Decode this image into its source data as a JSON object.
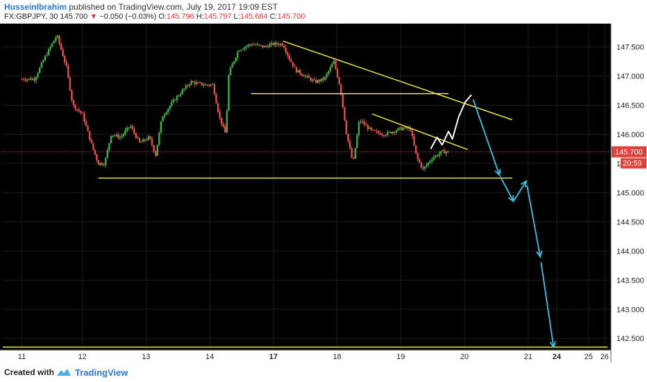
{
  "header": {
    "author": "HusseinIbrahim",
    "published_text": "published on TradingView.com, July 19, 2017 19:09 EST",
    "symbol_line": "FX:GBPJPY, 30",
    "last": "145.700",
    "change": "−0.050 (−0.03%)",
    "o_label": "O:",
    "o_val": "145.796",
    "h_label": "H:",
    "h_val": "145.797",
    "l_label": "L:",
    "l_val": "145.684",
    "c_label": "C:",
    "c_val": "145.700"
  },
  "footer": {
    "created_with": "Created with",
    "brand": "TradingView"
  },
  "chart_data": {
    "type": "candlestick",
    "symbol": "FX:GBPJPY",
    "interval": "30",
    "background": "#000000",
    "grid": true,
    "ylim": [
      142.3,
      147.9
    ],
    "y_ticks": [
      "147.500",
      "147.000",
      "146.500",
      "146.000",
      "145.500",
      "145.000",
      "144.500",
      "144.000",
      "143.500",
      "143.000",
      "142.500"
    ],
    "x_ticks": [
      "11",
      "12",
      "13",
      "14",
      "17",
      "18",
      "19",
      "20",
      "21",
      "24",
      "25",
      "26"
    ],
    "bold_x_ticks": [
      "17",
      "24"
    ],
    "price_badge": "145.700",
    "countdown_badge": "20:59",
    "colors": {
      "up": "#3fb04a",
      "down": "#e84e4e",
      "trendline": "#e8e840",
      "projection": "#3cc6e6",
      "wave": "#ffffff",
      "badge": "#e0403a"
    },
    "price_path": [
      [
        10.9,
        146.95
      ],
      [
        11.1,
        146.95
      ],
      [
        11.25,
        147.3
      ],
      [
        11.45,
        147.7
      ],
      [
        11.6,
        147.15
      ],
      [
        11.7,
        146.5
      ],
      [
        11.85,
        146.35
      ],
      [
        12.0,
        145.8
      ],
      [
        12.1,
        145.5
      ],
      [
        12.2,
        145.5
      ],
      [
        12.3,
        146.0
      ],
      [
        12.45,
        145.95
      ],
      [
        12.6,
        146.15
      ],
      [
        12.75,
        145.85
      ],
      [
        12.9,
        145.95
      ],
      [
        13.0,
        145.65
      ],
      [
        13.1,
        146.3
      ],
      [
        13.3,
        146.6
      ],
      [
        13.55,
        146.9
      ],
      [
        13.75,
        146.85
      ],
      [
        13.9,
        146.85
      ],
      [
        14.0,
        146.3
      ],
      [
        14.1,
        146.0
      ],
      [
        14.15,
        147.05
      ],
      [
        14.3,
        147.45
      ],
      [
        14.5,
        147.55
      ],
      [
        14.7,
        147.5
      ],
      [
        14.85,
        147.55
      ],
      [
        15.0,
        147.55
      ],
      [
        15.1,
        147.3
      ],
      [
        15.2,
        147.1
      ],
      [
        15.35,
        147.0
      ],
      [
        15.5,
        146.9
      ],
      [
        15.65,
        146.95
      ],
      [
        15.8,
        147.25
      ],
      [
        15.9,
        146.8
      ],
      [
        16.0,
        146.0
      ],
      [
        16.1,
        145.5
      ],
      [
        16.2,
        146.25
      ],
      [
        16.4,
        146.05
      ],
      [
        16.6,
        146.0
      ],
      [
        16.85,
        146.1
      ],
      [
        17.0,
        146.1
      ],
      [
        17.1,
        145.6
      ],
      [
        17.2,
        145.4
      ],
      [
        17.35,
        145.6
      ],
      [
        17.5,
        145.7
      ],
      [
        17.6,
        145.7
      ]
    ],
    "trendlines": [
      {
        "x1": 12.1,
        "y1": 145.25,
        "x2": 18.6,
        "y2": 145.25
      },
      {
        "x1": 14.5,
        "y1": 146.7,
        "x2": 17.6,
        "y2": 146.7
      },
      {
        "x1": 15.0,
        "y1": 147.6,
        "x2": 18.6,
        "y2": 146.25
      },
      {
        "x1": 16.4,
        "y1": 146.35,
        "x2": 17.9,
        "y2": 145.74
      },
      {
        "x1": 10.6,
        "y1": 142.35,
        "x2": 20.1,
        "y2": 142.35
      }
    ],
    "wave_path": [
      [
        17.32,
        145.75
      ],
      [
        17.42,
        145.95
      ],
      [
        17.5,
        145.82
      ],
      [
        17.6,
        146.05
      ],
      [
        17.66,
        145.92
      ],
      [
        17.76,
        146.3
      ],
      [
        17.86,
        146.55
      ],
      [
        17.96,
        146.68
      ]
    ],
    "projection_path": [
      [
        17.96,
        146.68
      ],
      [
        18.4,
        145.3
      ],
      [
        18.62,
        144.85
      ],
      [
        18.82,
        145.2
      ],
      [
        19.04,
        143.9
      ],
      [
        19.25,
        142.35
      ]
    ]
  }
}
